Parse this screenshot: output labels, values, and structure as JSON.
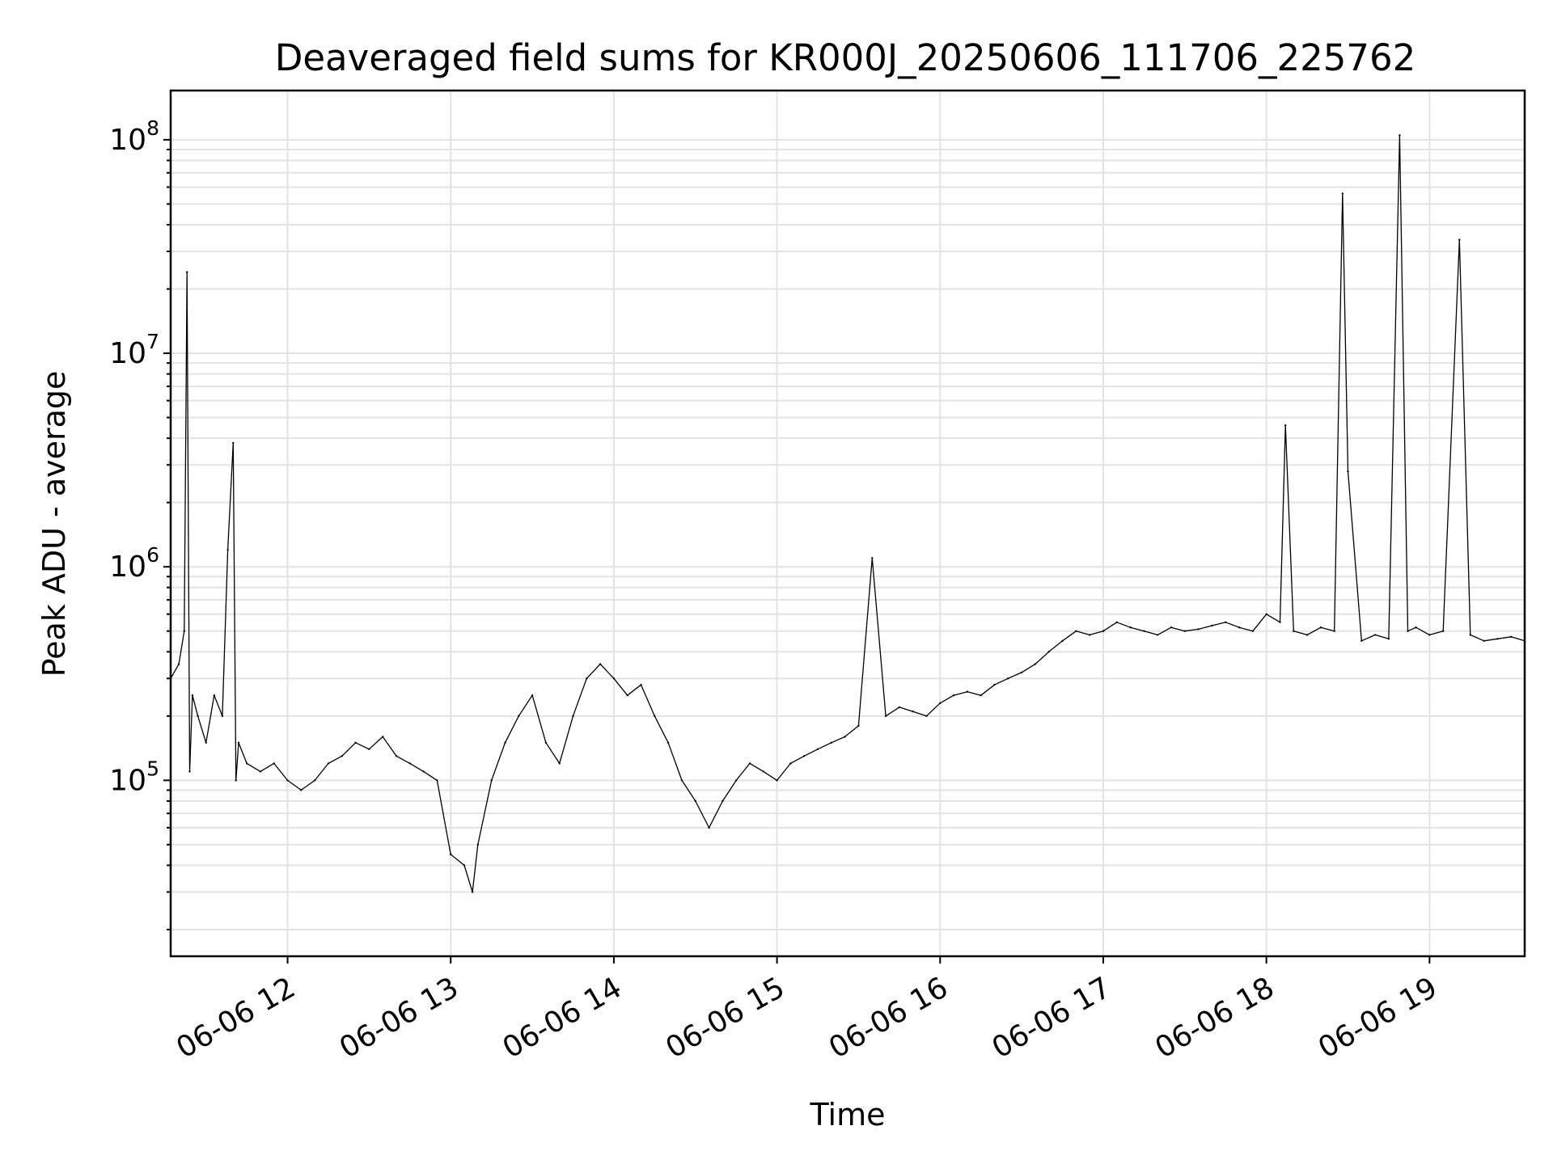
{
  "chart_data": {
    "type": "line",
    "title": "Deaveraged field sums for KR000J_20250606_111706_225762",
    "xlabel": "Time",
    "ylabel": "Peak ADU - average",
    "yscale": "log",
    "xlim": [
      "2025-06-06 11:17",
      "2025-06-06 19:35"
    ],
    "ylim": [
      15000,
      170000000
    ],
    "grid": true,
    "x_ticks": [
      {
        "value": "2025-06-06 12:00",
        "label": "06-06 12"
      },
      {
        "value": "2025-06-06 13:00",
        "label": "06-06 13"
      },
      {
        "value": "2025-06-06 14:00",
        "label": "06-06 14"
      },
      {
        "value": "2025-06-06 15:00",
        "label": "06-06 15"
      },
      {
        "value": "2025-06-06 16:00",
        "label": "06-06 16"
      },
      {
        "value": "2025-06-06 17:00",
        "label": "06-06 17"
      },
      {
        "value": "2025-06-06 18:00",
        "label": "06-06 18"
      },
      {
        "value": "2025-06-06 19:00",
        "label": "06-06 19"
      }
    ],
    "y_ticks": [
      {
        "value": 100000,
        "base": "10",
        "exp": "5"
      },
      {
        "value": 1000000,
        "base": "10",
        "exp": "6"
      },
      {
        "value": 10000000,
        "base": "10",
        "exp": "7"
      },
      {
        "value": 100000000,
        "base": "10",
        "exp": "8"
      }
    ],
    "series": [
      {
        "color": "#000000",
        "x": [
          "2025-06-06 11:17",
          "2025-06-06 11:20",
          "2025-06-06 11:22",
          "2025-06-06 11:23",
          "2025-06-06 11:24",
          "2025-06-06 11:25",
          "2025-06-06 11:27",
          "2025-06-06 11:30",
          "2025-06-06 11:33",
          "2025-06-06 11:36",
          "2025-06-06 11:38",
          "2025-06-06 11:40",
          "2025-06-06 11:41",
          "2025-06-06 11:42",
          "2025-06-06 11:45",
          "2025-06-06 11:50",
          "2025-06-06 11:55",
          "2025-06-06 12:00",
          "2025-06-06 12:05",
          "2025-06-06 12:10",
          "2025-06-06 12:15",
          "2025-06-06 12:20",
          "2025-06-06 12:25",
          "2025-06-06 12:30",
          "2025-06-06 12:35",
          "2025-06-06 12:40",
          "2025-06-06 12:45",
          "2025-06-06 12:50",
          "2025-06-06 12:55",
          "2025-06-06 13:00",
          "2025-06-06 13:05",
          "2025-06-06 13:08",
          "2025-06-06 13:10",
          "2025-06-06 13:15",
          "2025-06-06 13:20",
          "2025-06-06 13:25",
          "2025-06-06 13:30",
          "2025-06-06 13:35",
          "2025-06-06 13:40",
          "2025-06-06 13:45",
          "2025-06-06 13:50",
          "2025-06-06 13:55",
          "2025-06-06 14:00",
          "2025-06-06 14:05",
          "2025-06-06 14:10",
          "2025-06-06 14:15",
          "2025-06-06 14:20",
          "2025-06-06 14:25",
          "2025-06-06 14:30",
          "2025-06-06 14:35",
          "2025-06-06 14:40",
          "2025-06-06 14:45",
          "2025-06-06 14:50",
          "2025-06-06 14:55",
          "2025-06-06 15:00",
          "2025-06-06 15:05",
          "2025-06-06 15:10",
          "2025-06-06 15:15",
          "2025-06-06 15:20",
          "2025-06-06 15:25",
          "2025-06-06 15:30",
          "2025-06-06 15:35",
          "2025-06-06 15:40",
          "2025-06-06 15:45",
          "2025-06-06 15:50",
          "2025-06-06 15:55",
          "2025-06-06 16:00",
          "2025-06-06 16:05",
          "2025-06-06 16:10",
          "2025-06-06 16:15",
          "2025-06-06 16:20",
          "2025-06-06 16:25",
          "2025-06-06 16:30",
          "2025-06-06 16:35",
          "2025-06-06 16:40",
          "2025-06-06 16:45",
          "2025-06-06 16:50",
          "2025-06-06 16:55",
          "2025-06-06 17:00",
          "2025-06-06 17:05",
          "2025-06-06 17:10",
          "2025-06-06 17:15",
          "2025-06-06 17:20",
          "2025-06-06 17:25",
          "2025-06-06 17:30",
          "2025-06-06 17:35",
          "2025-06-06 17:40",
          "2025-06-06 17:45",
          "2025-06-06 17:50",
          "2025-06-06 17:55",
          "2025-06-06 18:00",
          "2025-06-06 18:05",
          "2025-06-06 18:07",
          "2025-06-06 18:10",
          "2025-06-06 18:15",
          "2025-06-06 18:20",
          "2025-06-06 18:25",
          "2025-06-06 18:28",
          "2025-06-06 18:30",
          "2025-06-06 18:35",
          "2025-06-06 18:40",
          "2025-06-06 18:45",
          "2025-06-06 18:49",
          "2025-06-06 18:52",
          "2025-06-06 18:55",
          "2025-06-06 19:00",
          "2025-06-06 19:05",
          "2025-06-06 19:11",
          "2025-06-06 19:15",
          "2025-06-06 19:20",
          "2025-06-06 19:25",
          "2025-06-06 19:30",
          "2025-06-06 19:35"
        ],
        "y": [
          300000,
          350000,
          500000,
          24000000,
          110000,
          250000,
          200000,
          150000,
          250000,
          200000,
          1200000,
          3800000,
          100000,
          150000,
          120000,
          110000,
          120000,
          100000,
          90000,
          100000,
          120000,
          130000,
          150000,
          140000,
          160000,
          130000,
          120000,
          110000,
          100000,
          45000,
          40000,
          30000,
          50000,
          100000,
          150000,
          200000,
          250000,
          150000,
          120000,
          200000,
          300000,
          350000,
          300000,
          250000,
          280000,
          200000,
          150000,
          100000,
          80000,
          60000,
          80000,
          100000,
          120000,
          110000,
          100000,
          120000,
          130000,
          140000,
          150000,
          160000,
          180000,
          1100000,
          200000,
          220000,
          210000,
          200000,
          230000,
          250000,
          260000,
          250000,
          280000,
          300000,
          320000,
          350000,
          400000,
          450000,
          500000,
          480000,
          500000,
          550000,
          520000,
          500000,
          480000,
          520000,
          500000,
          510000,
          530000,
          550000,
          520000,
          500000,
          600000,
          550000,
          4600000,
          500000,
          480000,
          520000,
          500000,
          56000000,
          2800000,
          450000,
          480000,
          460000,
          105000000,
          500000,
          520000,
          480000,
          500000,
          34000000,
          480000,
          450000,
          460000,
          470000,
          450000
        ]
      }
    ]
  }
}
